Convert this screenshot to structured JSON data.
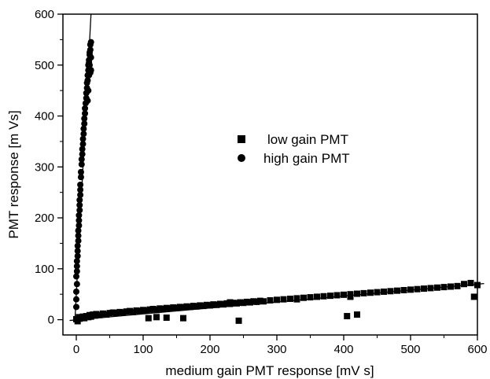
{
  "chart_data": {
    "type": "scatter",
    "title": "",
    "xlabel": "medium gain PMT response [mV s]",
    "ylabel": "PMT response [m Vs]",
    "xlim": [
      -20,
      600
    ],
    "ylim": [
      -30,
      600
    ],
    "xticks": [
      0,
      100,
      200,
      300,
      400,
      500,
      600
    ],
    "yticks": [
      0,
      100,
      200,
      300,
      400,
      500,
      600
    ],
    "grid": false,
    "legend_position": "center-right",
    "colors": {
      "marker": "#000000",
      "axis": "#000000",
      "background": "#ffffff"
    },
    "series": [
      {
        "name": "low gain PMT",
        "marker": "square",
        "x": [
          0,
          2,
          4,
          5,
          8,
          10,
          12,
          15,
          18,
          20,
          22,
          25,
          28,
          30,
          35,
          40,
          45,
          50,
          55,
          60,
          65,
          70,
          75,
          80,
          85,
          90,
          95,
          100,
          105,
          110,
          115,
          120,
          125,
          130,
          135,
          140,
          145,
          150,
          155,
          160,
          165,
          170,
          175,
          180,
          185,
          190,
          195,
          200,
          205,
          210,
          215,
          220,
          225,
          230,
          235,
          240,
          245,
          250,
          255,
          260,
          265,
          270,
          275,
          280,
          290,
          300,
          310,
          320,
          330,
          340,
          350,
          360,
          370,
          380,
          390,
          400,
          410,
          420,
          430,
          440,
          450,
          460,
          470,
          480,
          490,
          500,
          510,
          520,
          530,
          540,
          550,
          560,
          570,
          580,
          590,
          600,
          595,
          405,
          420,
          243,
          330,
          410,
          108,
          120,
          135,
          160,
          230
        ],
        "y": [
          1,
          -3,
          5,
          2,
          4,
          6,
          3,
          7,
          5,
          9,
          6,
          10,
          8,
          11,
          9,
          12,
          10,
          13,
          14,
          13,
          15,
          14,
          16,
          17,
          15,
          18,
          17,
          19,
          18,
          20,
          21,
          19,
          22,
          21,
          23,
          22,
          24,
          23,
          25,
          24,
          26,
          25,
          27,
          26,
          28,
          27,
          29,
          28,
          30,
          29,
          31,
          30,
          32,
          31,
          33,
          32,
          34,
          33,
          35,
          34,
          36,
          35,
          37,
          36,
          38,
          39,
          40,
          41,
          42,
          43,
          44,
          45,
          46,
          47,
          48,
          49,
          50,
          51,
          52,
          53,
          54,
          55,
          56,
          57,
          58,
          59,
          60,
          61,
          62,
          63,
          64,
          65,
          66,
          70,
          72,
          68,
          45,
          7,
          10,
          -2,
          40,
          45,
          3,
          5,
          4,
          3,
          34
        ]
      },
      {
        "name": "high gain PMT",
        "marker": "circle",
        "x": [
          0,
          0,
          0,
          1,
          0,
          1,
          1,
          1,
          2,
          2,
          2,
          3,
          3,
          3,
          4,
          4,
          4,
          5,
          5,
          5,
          6,
          6,
          6,
          7,
          7,
          8,
          8,
          9,
          9,
          10,
          10,
          11,
          11,
          12,
          12,
          13,
          13,
          14,
          15,
          15,
          16,
          16,
          17,
          17,
          18,
          18,
          19,
          19,
          20,
          20,
          21,
          21,
          22,
          22,
          21,
          20,
          19,
          22,
          18,
          17
        ],
        "y": [
          25,
          40,
          55,
          70,
          85,
          95,
          105,
          115,
          125,
          135,
          145,
          155,
          165,
          175,
          185,
          195,
          205,
          215,
          225,
          235,
          245,
          255,
          265,
          280,
          290,
          305,
          315,
          325,
          335,
          345,
          355,
          365,
          375,
          385,
          395,
          405,
          415,
          425,
          435,
          445,
          455,
          465,
          470,
          480,
          490,
          500,
          505,
          510,
          520,
          525,
          530,
          540,
          545,
          490,
          485,
          500,
          480,
          515,
          450,
          430
        ]
      }
    ],
    "fit_lines": [
      {
        "series": "low gain PMT",
        "x": [
          -10,
          610
        ],
        "y": [
          -1.5,
          71
        ]
      },
      {
        "series": "high gain PMT",
        "x": [
          -2,
          22
        ],
        "y": [
          0,
          600
        ]
      }
    ]
  }
}
